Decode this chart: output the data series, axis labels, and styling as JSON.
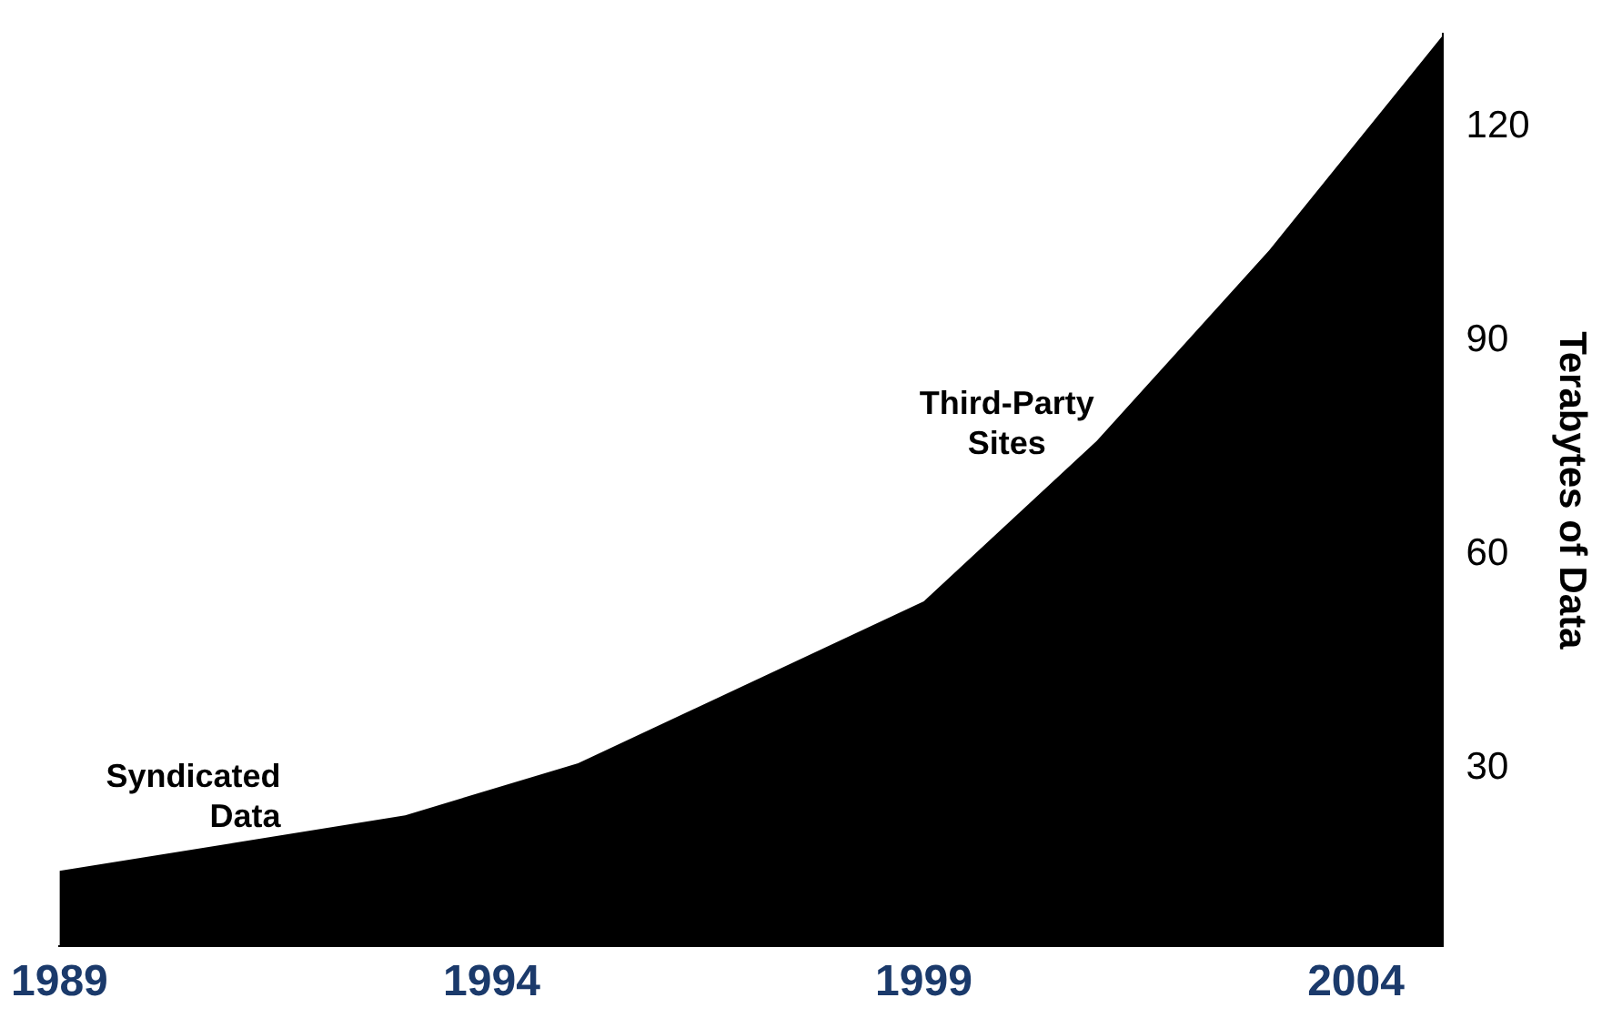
{
  "chart_data": {
    "type": "area",
    "ylabel": "Terabytes of Data",
    "x": [
      1989,
      1993,
      1995,
      1999,
      2001,
      2003,
      2005
    ],
    "values": [
      15.6,
      23.4,
      30.7,
      53.4,
      75.9,
      102.7,
      132.7
    ],
    "color": "#000000",
    "xlim": [
      1989,
      2005
    ],
    "xticks": [
      1989,
      1994,
      1999,
      2004
    ],
    "ylim": [
      5,
      133
    ],
    "yticks": [
      30,
      60,
      90,
      120
    ],
    "grid": false,
    "legend": false,
    "annotations": [
      "Syndicated Data",
      "Third-Party Sites"
    ]
  }
}
